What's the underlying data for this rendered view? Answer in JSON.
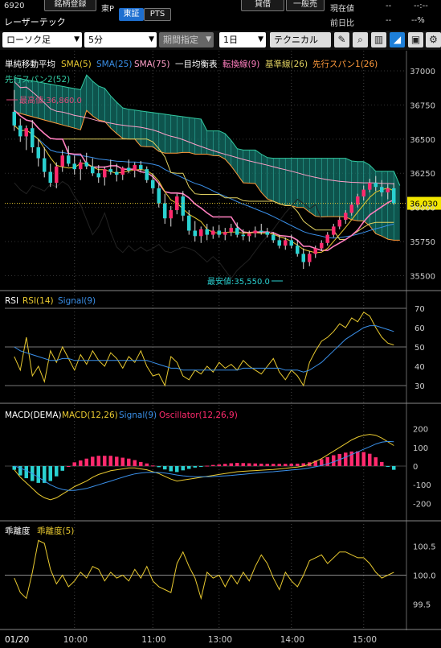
{
  "header": {
    "code": "6920",
    "register_label": "銘柄登録",
    "market": "東P",
    "name": "レーザーテック",
    "market_tab_active": "東証",
    "market_tab_pts": "PTS",
    "credit_buttons": [
      "貸借",
      "一般売"
    ],
    "current_price_label": "現在値",
    "current_price_value": "--",
    "current_time": "--:--",
    "prev_ratio_label": "前日比",
    "prev_ratio_value": "--",
    "prev_ratio_pct": "--%"
  },
  "toolbar": {
    "chart_type": "ローソク足",
    "interval": "5分",
    "period": "期間指定",
    "span": "1日",
    "technical": "テクニカル",
    "tools": [
      "pencil-icon",
      "zoom-icon",
      "bar-chart-icon",
      "area-chart-icon",
      "save-icon",
      "settings-icon"
    ]
  },
  "colors": {
    "up": "#ff2a6d",
    "down": "#2ad1d1",
    "sma5": "#e8c930",
    "sma25": "#3a8fe8",
    "sma75": "#ff9fc8",
    "tenkan": "#ff7fbf",
    "kijun": "#e0d060",
    "spanA": "#ff9a3c",
    "spanB": "#32c8a0",
    "rsi": "#e8c930",
    "signal": "#3a8fe8",
    "osc_up": "#ff2a6d",
    "osc_down": "#2ad1d1"
  },
  "main_panel": {
    "legend": [
      "単純移動平均",
      "SMA(5)",
      "SMA(25)",
      "SMA(75)",
      "一目均衡表",
      "転換線(9)",
      "基準線(26)",
      "先行スパン1(26)",
      "先行スパン2(52)"
    ],
    "high_label": "最高値:36,860.0",
    "low_label": "最安値:35,550.0",
    "last_price_label": "36,030",
    "yticks": [
      37000,
      36750,
      36500,
      36250,
      36000,
      35750,
      35500
    ]
  },
  "rsi_panel": {
    "legend": [
      "RSI",
      "RSI(14)",
      "Signal(9)"
    ],
    "yticks": [
      70,
      60,
      50,
      40,
      30
    ]
  },
  "macd_panel": {
    "legend": [
      "MACD(DEMA)",
      "MACD(12,26)",
      "Signal(9)",
      "Oscillator(12,26,9)"
    ],
    "yticks": [
      200,
      100,
      0,
      -100,
      -200
    ]
  },
  "dev_panel": {
    "legend": [
      "乖離度",
      "乖離度(5)"
    ],
    "yticks": [
      100.5,
      100.0,
      99.5
    ]
  },
  "xaxis": {
    "labels": [
      "01/20",
      "10:00",
      "11:00",
      "13:00",
      "14:00",
      "15:00"
    ]
  },
  "chart_data": [
    {
      "type": "candlestick",
      "title": "",
      "categories_note": "",
      "ylim": [
        35450,
        37100
      ],
      "candles": [
        [
          36700,
          36860,
          36560,
          36600
        ],
        [
          36600,
          36650,
          36480,
          36520
        ],
        [
          36520,
          36600,
          36420,
          36580
        ],
        [
          36580,
          36640,
          36400,
          36440
        ],
        [
          36440,
          36500,
          36300,
          36360
        ],
        [
          36360,
          36440,
          36220,
          36260
        ],
        [
          36260,
          36320,
          36150,
          36180
        ],
        [
          36180,
          36330,
          36140,
          36300
        ],
        [
          36300,
          36420,
          36260,
          36380
        ],
        [
          36380,
          36450,
          36300,
          36320
        ],
        [
          36320,
          36380,
          36240,
          36280
        ],
        [
          36280,
          36350,
          36200,
          36330
        ],
        [
          36330,
          36400,
          36280,
          36300
        ],
        [
          36300,
          36360,
          36230,
          36250
        ],
        [
          36250,
          36310,
          36180,
          36220
        ],
        [
          36220,
          36300,
          36160,
          36280
        ],
        [
          36280,
          36350,
          36240,
          36260
        ],
        [
          36260,
          36320,
          36190,
          36240
        ],
        [
          36240,
          36300,
          36200,
          36290
        ],
        [
          36290,
          36350,
          36250,
          36270
        ],
        [
          36270,
          36330,
          36220,
          36310
        ],
        [
          36310,
          36340,
          36260,
          36280
        ],
        [
          36280,
          36300,
          36180,
          36200
        ],
        [
          36200,
          36250,
          36100,
          36140
        ],
        [
          36140,
          36180,
          36000,
          36030
        ],
        [
          36030,
          36100,
          35880,
          35920
        ],
        [
          35920,
          36010,
          35860,
          35980
        ],
        [
          35980,
          36100,
          35950,
          36080
        ],
        [
          36080,
          36120,
          35900,
          35940
        ],
        [
          35940,
          35980,
          35800,
          35830
        ],
        [
          35830,
          35900,
          35750,
          35790
        ],
        [
          35790,
          35860,
          35740,
          35840
        ],
        [
          35840,
          35880,
          35760,
          35800
        ],
        [
          35800,
          35860,
          35770,
          35830
        ],
        [
          35830,
          35870,
          35780,
          35800
        ],
        [
          35800,
          35850,
          35760,
          35820
        ],
        [
          35820,
          35880,
          35790,
          35850
        ],
        [
          35850,
          35890,
          35780,
          35800
        ],
        [
          35800,
          35840,
          35760,
          35790
        ],
        [
          35790,
          35830,
          35750,
          35810
        ],
        [
          35810,
          35860,
          35780,
          35830
        ],
        [
          35830,
          35880,
          35800,
          35820
        ],
        [
          35820,
          35850,
          35780,
          35800
        ],
        [
          35800,
          35820,
          35740,
          35760
        ],
        [
          35760,
          35800,
          35700,
          35720
        ],
        [
          35720,
          35780,
          35690,
          35760
        ],
        [
          35760,
          35800,
          35700,
          35720
        ],
        [
          35720,
          35760,
          35640,
          35660
        ],
        [
          35660,
          35700,
          35550,
          35600
        ],
        [
          35600,
          35680,
          35570,
          35660
        ],
        [
          35660,
          35720,
          35630,
          35700
        ],
        [
          35700,
          35760,
          35680,
          35740
        ],
        [
          35740,
          35820,
          35720,
          35800
        ],
        [
          35800,
          35880,
          35780,
          35860
        ],
        [
          35860,
          35930,
          35840,
          35910
        ],
        [
          35910,
          35980,
          35880,
          35960
        ],
        [
          35960,
          36040,
          35940,
          36020
        ],
        [
          36020,
          36100,
          36000,
          36080
        ],
        [
          36080,
          36160,
          36050,
          36130
        ],
        [
          36130,
          36210,
          36110,
          36180
        ],
        [
          36180,
          36230,
          36120,
          36150
        ],
        [
          36150,
          36200,
          36080,
          36110
        ],
        [
          36110,
          36170,
          36060,
          36140
        ],
        [
          36140,
          36180,
          36020,
          36030
        ]
      ]
    },
    {
      "type": "line",
      "title": "RSI",
      "ylim": [
        25,
        75
      ],
      "series": [
        {
          "name": "RSI(14)",
          "values": [
            45,
            38,
            55,
            35,
            40,
            32,
            48,
            42,
            50,
            44,
            38,
            46,
            41,
            48,
            43,
            40,
            47,
            44,
            39,
            45,
            42,
            48,
            40,
            35,
            36,
            30,
            45,
            42,
            35,
            33,
            38,
            36,
            40,
            37,
            42,
            39,
            41,
            38,
            43,
            40,
            38,
            36,
            40,
            44,
            37,
            33,
            38,
            35,
            30,
            42,
            48,
            53,
            55,
            58,
            62,
            60,
            65,
            63,
            68,
            66,
            60,
            55,
            52,
            51
          ]
        },
        {
          "name": "Signal(9)",
          "values": [
            50,
            48,
            47,
            46,
            45,
            44,
            43,
            43,
            44,
            44,
            43,
            43,
            43,
            43,
            43,
            43,
            43,
            43,
            43,
            43,
            43,
            43,
            43,
            42,
            41,
            40,
            39,
            39,
            38,
            38,
            38,
            38,
            38,
            38,
            38,
            38,
            38,
            38,
            39,
            39,
            39,
            39,
            39,
            39,
            39,
            38,
            38,
            38,
            37,
            38,
            40,
            42,
            45,
            48,
            51,
            54,
            56,
            58,
            60,
            61,
            61,
            60,
            59,
            58
          ]
        }
      ]
    },
    {
      "type": "line",
      "title": "MACD(DEMA)",
      "ylim": [
        -250,
        250
      ],
      "series": [
        {
          "name": "MACD(12,26)",
          "values": [
            -20,
            -60,
            -90,
            -120,
            -150,
            -170,
            -180,
            -170,
            -150,
            -130,
            -110,
            -95,
            -80,
            -60,
            -45,
            -35,
            -25,
            -20,
            -15,
            -10,
            -10,
            -15,
            -20,
            -30,
            -40,
            -55,
            -70,
            -80,
            -75,
            -70,
            -65,
            -60,
            -55,
            -50,
            -45,
            -40,
            -35,
            -30,
            -28,
            -26,
            -24,
            -22,
            -20,
            -18,
            -15,
            -12,
            -8,
            -5,
            0,
            10,
            25,
            40,
            60,
            80,
            100,
            120,
            140,
            155,
            165,
            170,
            165,
            150,
            130,
            110
          ]
        },
        {
          "name": "Signal(9)",
          "values": [
            0,
            -10,
            -25,
            -40,
            -60,
            -80,
            -100,
            -115,
            -125,
            -130,
            -130,
            -125,
            -120,
            -110,
            -100,
            -90,
            -80,
            -70,
            -60,
            -50,
            -42,
            -37,
            -34,
            -33,
            -34,
            -37,
            -42,
            -48,
            -52,
            -55,
            -57,
            -57,
            -57,
            -56,
            -54,
            -52,
            -50,
            -47,
            -44,
            -41,
            -38,
            -35,
            -32,
            -30,
            -27,
            -24,
            -21,
            -18,
            -15,
            -10,
            -4,
            3,
            12,
            22,
            35,
            48,
            62,
            76,
            90,
            104,
            118,
            128,
            132,
            130
          ]
        },
        {
          "name": "Oscillator(12,26,9)",
          "values": [
            -20,
            -50,
            -65,
            -80,
            -90,
            -90,
            -80,
            -55,
            -25,
            0,
            20,
            30,
            40,
            50,
            55,
            55,
            55,
            50,
            45,
            40,
            32,
            22,
            14,
            3,
            -6,
            -18,
            -28,
            -32,
            -23,
            -15,
            -8,
            -3,
            2,
            6,
            9,
            12,
            15,
            17,
            16,
            15,
            14,
            13,
            12,
            12,
            12,
            12,
            13,
            13,
            15,
            20,
            29,
            37,
            48,
            58,
            65,
            72,
            78,
            79,
            75,
            66,
            47,
            22,
            -2,
            -20
          ]
        }
      ]
    },
    {
      "type": "line",
      "title": "乖離度",
      "ylim": [
        99.2,
        100.8
      ],
      "series": [
        {
          "name": "乖離度(5)",
          "values": [
            99.95,
            99.7,
            99.6,
            100.05,
            100.6,
            100.55,
            100.1,
            99.85,
            100.0,
            99.8,
            99.9,
            100.05,
            99.95,
            100.15,
            100.1,
            99.9,
            100.05,
            99.95,
            100.0,
            99.9,
            100.1,
            99.95,
            100.15,
            99.9,
            99.8,
            99.75,
            99.7,
            100.2,
            100.4,
            100.15,
            99.95,
            99.6,
            100.05,
            99.95,
            100.0,
            99.8,
            100.0,
            99.85,
            100.05,
            99.9,
            100.15,
            100.35,
            100.2,
            99.95,
            99.75,
            100.05,
            99.9,
            99.8,
            100.0,
            100.25,
            100.3,
            100.35,
            100.2,
            100.3,
            100.4,
            100.4,
            100.35,
            100.3,
            100.3,
            100.2,
            100.05,
            99.95,
            100.0,
            100.05
          ]
        }
      ]
    }
  ]
}
